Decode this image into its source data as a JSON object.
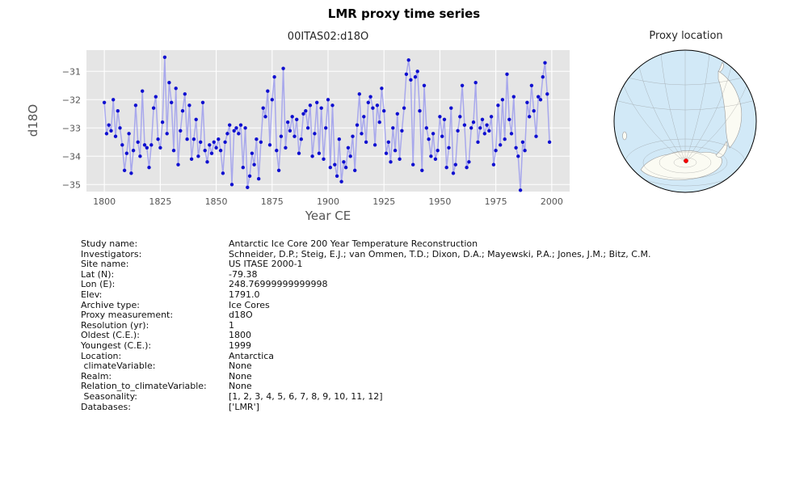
{
  "title": "LMR proxy time series",
  "chart_data": {
    "type": "line",
    "title": "00ITAS02:d18O",
    "xlabel": "Year CE",
    "ylabel": "d18O",
    "xlim": [
      1792,
      2008
    ],
    "ylim": [
      -35.25,
      -30.25
    ],
    "xticks": [
      1800,
      1825,
      1850,
      1875,
      1900,
      1925,
      1950,
      1975,
      2000
    ],
    "yticks": [
      -31,
      -32,
      -33,
      -34,
      -35
    ],
    "background": "#e5e5e5",
    "grid_color": "#ffffff",
    "line_color": "#9999ee",
    "marker_color": "#0f0fd0",
    "x_start": 1800,
    "x_step": 1,
    "values": [
      -32.1,
      -33.2,
      -32.9,
      -33.1,
      -32.0,
      -33.3,
      -32.4,
      -33.0,
      -33.6,
      -34.5,
      -33.9,
      -33.2,
      -34.6,
      -33.8,
      -32.2,
      -33.5,
      -34.0,
      -31.7,
      -33.6,
      -33.7,
      -34.4,
      -33.6,
      -32.3,
      -31.9,
      -33.4,
      -33.7,
      -32.8,
      -30.5,
      -33.2,
      -31.4,
      -32.1,
      -33.8,
      -31.6,
      -34.3,
      -33.1,
      -32.4,
      -31.8,
      -33.4,
      -32.2,
      -34.1,
      -33.4,
      -32.7,
      -34.0,
      -33.5,
      -32.1,
      -33.8,
      -34.2,
      -33.6,
      -33.9,
      -33.5,
      -33.7,
      -33.4,
      -33.8,
      -34.6,
      -33.5,
      -33.2,
      -32.9,
      -35.0,
      -33.1,
      -33.0,
      -33.2,
      -32.9,
      -34.4,
      -33.0,
      -35.1,
      -34.7,
      -33.9,
      -34.3,
      -33.4,
      -34.8,
      -33.5,
      -32.3,
      -32.6,
      -31.7,
      -33.6,
      -32.0,
      -31.2,
      -33.8,
      -34.5,
      -33.3,
      -30.9,
      -33.7,
      -32.8,
      -33.1,
      -32.6,
      -33.3,
      -32.7,
      -33.9,
      -33.4,
      -32.5,
      -32.4,
      -33.0,
      -32.2,
      -34.0,
      -33.2,
      -32.1,
      -33.9,
      -32.3,
      -34.1,
      -33.0,
      -32.0,
      -34.4,
      -32.2,
      -34.3,
      -34.7,
      -33.4,
      -34.9,
      -34.2,
      -34.4,
      -33.7,
      -34.0,
      -33.3,
      -34.5,
      -32.9,
      -31.8,
      -33.2,
      -32.6,
      -33.5,
      -32.1,
      -31.9,
      -32.3,
      -33.6,
      -32.2,
      -32.8,
      -31.6,
      -32.4,
      -33.9,
      -33.5,
      -34.2,
      -33.0,
      -33.8,
      -32.5,
      -34.1,
      -33.1,
      -32.3,
      -31.1,
      -30.6,
      -31.3,
      -34.3,
      -31.2,
      -31.0,
      -32.4,
      -34.5,
      -31.5,
      -33.0,
      -33.4,
      -34.0,
      -33.2,
      -34.1,
      -33.8,
      -32.6,
      -33.3,
      -32.7,
      -34.4,
      -33.7,
      -32.3,
      -34.6,
      -34.3,
      -33.1,
      -32.6,
      -31.5,
      -32.9,
      -34.4,
      -34.2,
      -33.0,
      -32.8,
      -31.4,
      -33.5,
      -33.0,
      -32.7,
      -33.2,
      -32.9,
      -33.1,
      -32.6,
      -34.3,
      -33.8,
      -32.2,
      -33.6,
      -32.0,
      -33.4,
      -31.1,
      -32.7,
      -33.2,
      -31.9,
      -33.7,
      -34.0,
      -35.2,
      -33.5,
      -33.8,
      -32.1,
      -32.6,
      -31.5,
      -32.4,
      -33.3,
      -31.9,
      -32.0,
      -31.2,
      -30.7,
      -31.8,
      -33.5
    ]
  },
  "map": {
    "title": "Proxy location",
    "ocean_color": "#d2e9f7",
    "land_color": "#fbfbf3",
    "marker_color": "#ff0000"
  },
  "metadata": {
    "rows": [
      {
        "label": "Study name:",
        "value": "Antarctic Ice Core 200 Year Temperature Reconstruction"
      },
      {
        "label": "Investigators:",
        "value": "Schneider, D.P.; Steig, E.J.; van Ommen, T.D.; Dixon, D.A.; Mayewski, P.A.; Jones, J.M.; Bitz, C.M."
      },
      {
        "label": "Site name:",
        "value": "US ITASE 2000-1"
      },
      {
        "label": "Lat (N):",
        "value": "-79.38"
      },
      {
        "label": "Lon (E):",
        "value": "248.76999999999998"
      },
      {
        "label": "Elev:",
        "value": "1791.0"
      },
      {
        "label": "Archive type:",
        "value": "Ice Cores"
      },
      {
        "label": "Proxy measurement:",
        "value": "d18O"
      },
      {
        "label": "Resolution (yr):",
        "value": "1"
      },
      {
        "label": "Oldest (C.E.):",
        "value": "1800"
      },
      {
        "label": "Youngest (C.E.):",
        "value": "1999"
      },
      {
        "label": "Location:",
        "value": "Antarctica"
      },
      {
        "label": " climateVariable:",
        "value": "None"
      },
      {
        "label": "Realm:",
        "value": "None"
      },
      {
        "label": "Relation_to_climateVariable:",
        "value": "None"
      },
      {
        "label": " Seasonality:",
        "value": "[1, 2, 3, 4, 5, 6, 7, 8, 9, 10, 11, 12]"
      },
      {
        "label": "Databases:",
        "value": "['LMR']"
      }
    ]
  }
}
